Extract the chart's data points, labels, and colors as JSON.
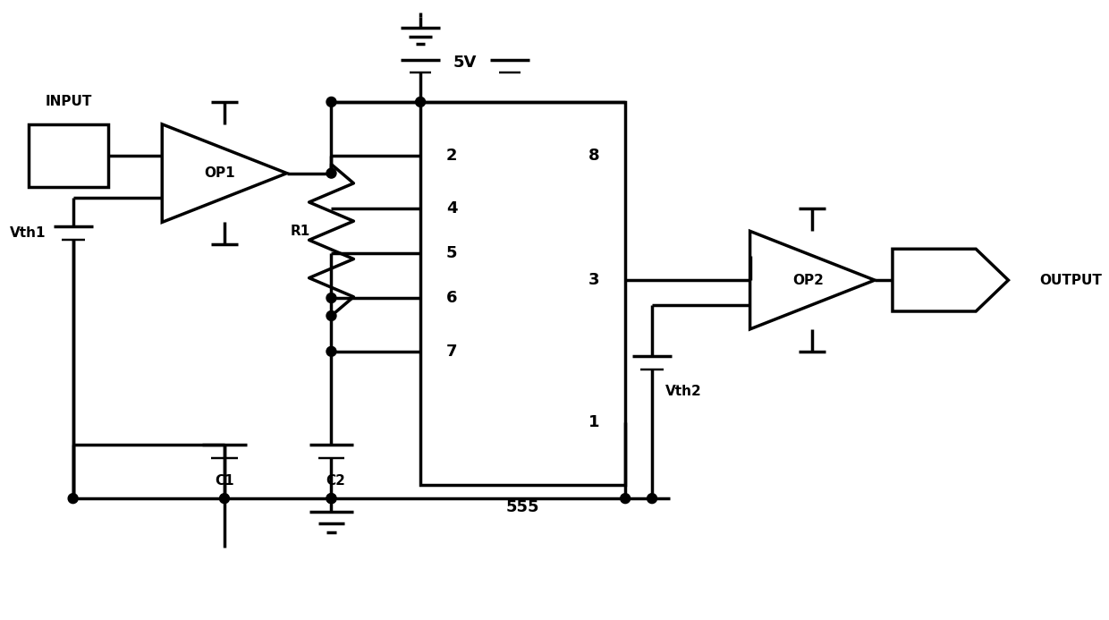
{
  "bg_color": "#ffffff",
  "line_color": "#000000",
  "lw": 2.5,
  "fig_width": 12.4,
  "fig_height": 6.93,
  "dpi": 100,
  "xlim": [
    0,
    124
  ],
  "ylim": [
    0,
    69.3
  ]
}
